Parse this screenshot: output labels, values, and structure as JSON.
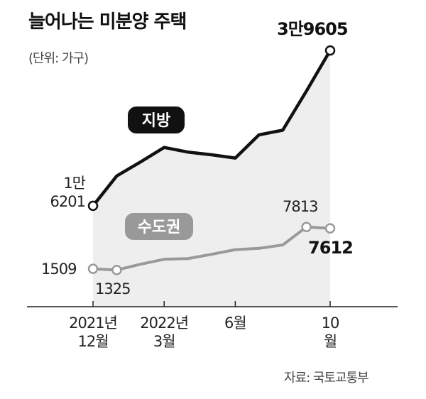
{
  "chart_data": {
    "type": "line",
    "title": "늘어나는 미분양 주택",
    "subtitle": "(단위: 가구)",
    "source": "자료: 국토교통부",
    "categories": [
      "2021년 12월",
      null,
      null,
      "2022년 3월",
      null,
      null,
      "6월",
      null,
      null,
      null,
      "10월"
    ],
    "series": [
      {
        "name": "지방",
        "color": "#111111",
        "ylim": [
          1000,
          40800
        ],
        "values": [
          16201,
          20700,
          22800,
          25000,
          24300,
          23900,
          23400,
          26900,
          27600,
          33500,
          39605
        ],
        "value_labels": [
          "1만 6201",
          null,
          null,
          null,
          null,
          null,
          null,
          null,
          null,
          null,
          "3만9605"
        ]
      },
      {
        "name": "수도권",
        "color": "#999999",
        "ylim": [
          -4200,
          35600
        ],
        "values": [
          1509,
          1325,
          2200,
          2950,
          3050,
          3700,
          4400,
          4600,
          5100,
          7813,
          7612
        ]
      }
    ]
  }
}
